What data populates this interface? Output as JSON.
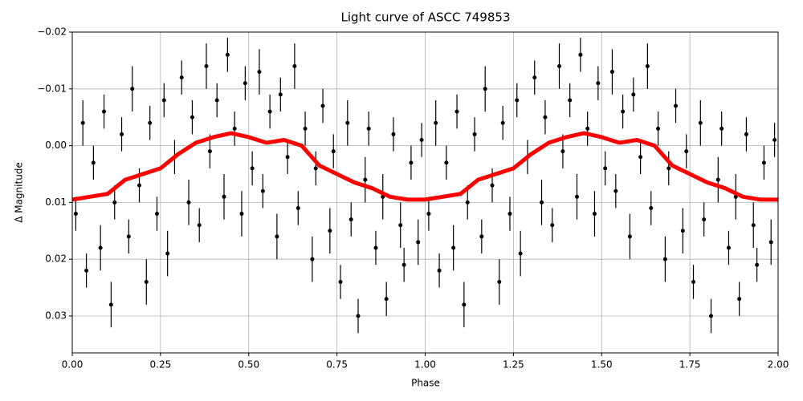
{
  "chart_data": {
    "type": "errorbar",
    "title": "Light curve of ASCC 749853",
    "xlabel": "Phase",
    "ylabel": "Δ Magnitude",
    "xlim": [
      0,
      2
    ],
    "ylim": [
      -0.02,
      0.0365
    ],
    "y_inverted": true,
    "grid": true,
    "xticks": [
      {
        "value": 0,
        "label": "0.00"
      },
      0.25,
      {
        "value": 0.5,
        "label": "0.50"
      },
      0.75,
      {
        "value": 1,
        "label": "1.00"
      },
      1.25,
      {
        "value": 1.5,
        "label": "1.50"
      },
      1.75,
      {
        "value": 2,
        "label": "2.00"
      }
    ],
    "yticks": [
      {
        "value": -0.02,
        "label": "−0.02"
      },
      {
        "value": -0.01,
        "label": "−0.01"
      },
      {
        "value": 0,
        "label": "0.00"
      },
      0.01,
      0.02,
      0.03
    ],
    "points": {
      "color": "#000000",
      "x": [
        0.01,
        0.03,
        0.04,
        0.06,
        0.08,
        0.09,
        0.11,
        0.12,
        0.14,
        0.16,
        0.17,
        0.19,
        0.21,
        0.22,
        0.24,
        0.26,
        0.27,
        0.29,
        0.31,
        0.33,
        0.34,
        0.36,
        0.38,
        0.39,
        0.41,
        0.43,
        0.44,
        0.46,
        0.48,
        0.49,
        0.51,
        0.53,
        0.54,
        0.56,
        0.58,
        0.59,
        0.61,
        0.63,
        0.64,
        0.66,
        0.68,
        0.69,
        0.71,
        0.73,
        0.74,
        0.76,
        0.78,
        0.79,
        0.81,
        0.83,
        0.84,
        0.86,
        0.88,
        0.89,
        0.91,
        0.93,
        0.94,
        0.96,
        0.98,
        0.99,
        1.01,
        1.03,
        1.04,
        1.06,
        1.08,
        1.09,
        1.11,
        1.12,
        1.14,
        1.16,
        1.17,
        1.19,
        1.21,
        1.22,
        1.24,
        1.26,
        1.27,
        1.29,
        1.31,
        1.33,
        1.34,
        1.36,
        1.38,
        1.39,
        1.41,
        1.43,
        1.44,
        1.46,
        1.48,
        1.49,
        1.51,
        1.53,
        1.54,
        1.56,
        1.58,
        1.59,
        1.61,
        1.63,
        1.64,
        1.66,
        1.68,
        1.69,
        1.71,
        1.73,
        1.74,
        1.76,
        1.78,
        1.79,
        1.81,
        1.83,
        1.84,
        1.86,
        1.88,
        1.89,
        1.91,
        1.93,
        1.94,
        1.96,
        1.98,
        1.99
      ],
      "values": [
        0.012,
        -0.004,
        0.022,
        0.003,
        0.018,
        -0.006,
        0.028,
        0.01,
        -0.002,
        0.016,
        -0.01,
        0.007,
        0.024,
        -0.004,
        0.012,
        -0.008,
        0.019,
        0.002,
        -0.012,
        0.01,
        -0.005,
        0.014,
        -0.014,
        0.001,
        -0.008,
        0.009,
        -0.016,
        -0.003,
        0.012,
        -0.011,
        0.004,
        -0.013,
        0.008,
        -0.006,
        0.016,
        -0.009,
        0.002,
        -0.014,
        0.011,
        -0.003,
        0.02,
        0.004,
        -0.007,
        0.015,
        0.001,
        0.024,
        -0.004,
        0.013,
        0.03,
        0.006,
        -0.003,
        0.018,
        0.009,
        0.027,
        -0.002,
        0.014,
        0.021,
        0.003,
        0.017,
        -0.001,
        0.012,
        -0.004,
        0.022,
        0.003,
        0.018,
        -0.006,
        0.028,
        0.01,
        -0.002,
        0.016,
        -0.01,
        0.007,
        0.024,
        -0.004,
        0.012,
        -0.008,
        0.019,
        0.002,
        -0.012,
        0.01,
        -0.005,
        0.014,
        -0.014,
        0.001,
        -0.008,
        0.009,
        -0.016,
        -0.003,
        0.012,
        -0.011,
        0.004,
        -0.013,
        0.008,
        -0.006,
        0.016,
        -0.009,
        0.002,
        -0.014,
        0.011,
        -0.003,
        0.02,
        0.004,
        -0.007,
        0.015,
        0.001,
        0.024,
        -0.004,
        0.013,
        0.03,
        0.006,
        -0.003,
        0.018,
        0.009,
        0.027,
        -0.002,
        0.014,
        0.021,
        0.003,
        0.017,
        -0.001
      ],
      "errors": [
        0.003,
        0.004,
        0.003,
        0.003,
        0.004,
        0.003,
        0.004,
        0.003,
        0.003,
        0.003,
        0.004,
        0.003,
        0.004,
        0.003,
        0.003,
        0.003,
        0.004,
        0.003,
        0.003,
        0.004,
        0.003,
        0.003,
        0.004,
        0.003,
        0.003,
        0.004,
        0.003,
        0.003,
        0.004,
        0.003,
        0.003,
        0.004,
        0.003,
        0.003,
        0.004,
        0.003,
        0.003,
        0.004,
        0.003,
        0.003,
        0.004,
        0.003,
        0.003,
        0.004,
        0.003,
        0.003,
        0.004,
        0.003,
        0.003,
        0.004,
        0.003,
        0.003,
        0.004,
        0.003,
        0.003,
        0.004,
        0.003,
        0.003,
        0.004,
        0.003,
        0.003,
        0.004,
        0.003,
        0.003,
        0.004,
        0.003,
        0.004,
        0.003,
        0.003,
        0.003,
        0.004,
        0.003,
        0.004,
        0.003,
        0.003,
        0.003,
        0.004,
        0.003,
        0.003,
        0.004,
        0.003,
        0.003,
        0.004,
        0.003,
        0.003,
        0.004,
        0.003,
        0.003,
        0.004,
        0.003,
        0.003,
        0.004,
        0.003,
        0.003,
        0.004,
        0.003,
        0.003,
        0.004,
        0.003,
        0.003,
        0.004,
        0.003,
        0.003,
        0.004,
        0.003,
        0.003,
        0.004,
        0.003,
        0.003,
        0.004,
        0.003,
        0.003,
        0.004,
        0.003,
        0.003,
        0.004,
        0.003,
        0.003,
        0.004,
        0.003
      ]
    },
    "curve": {
      "color": "#ff0000",
      "x": [
        0,
        0.05,
        0.1,
        0.15,
        0.2,
        0.25,
        0.3,
        0.35,
        0.4,
        0.45,
        0.5,
        0.55,
        0.6,
        0.65,
        0.7,
        0.75,
        0.8,
        0.85,
        0.9,
        0.95,
        1,
        1.05,
        1.1,
        1.15,
        1.2,
        1.25,
        1.3,
        1.35,
        1.4,
        1.45,
        1.5,
        1.55,
        1.6,
        1.65,
        1.7,
        1.75,
        1.8,
        1.85,
        1.9,
        1.95,
        2
      ],
      "values": [
        0.0095,
        0.009,
        0.0085,
        0.006,
        0.005,
        0.004,
        0.0015,
        -0.0005,
        -0.0015,
        -0.0022,
        -0.0015,
        -0.0005,
        -0.001,
        0.0,
        0.0035,
        0.005,
        0.0065,
        0.0075,
        0.009,
        0.0095,
        0.0095,
        0.009,
        0.0085,
        0.006,
        0.005,
        0.004,
        0.0015,
        -0.0005,
        -0.0015,
        -0.0022,
        -0.0015,
        -0.0005,
        -0.001,
        0.0,
        0.0035,
        0.005,
        0.0065,
        0.0075,
        0.009,
        0.0095,
        0.0095
      ]
    }
  }
}
